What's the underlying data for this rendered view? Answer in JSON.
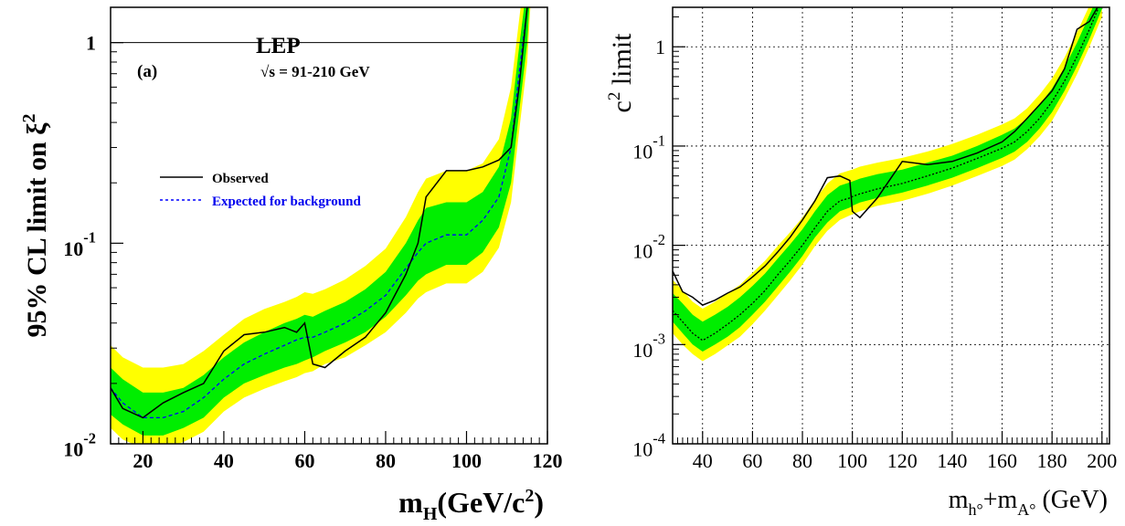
{
  "chart_data": [
    {
      "type": "line",
      "panel_label": "(a)",
      "header": "LEP",
      "energy_label": "√s = 91-210 GeV",
      "ylabel": "95% CL limit on ξ",
      "ylabel_sup": "2",
      "xlabel": "m",
      "xlabel_sub": "H",
      "xlabel_unit": "(GeV/c",
      "xlabel_unit_sup": "2",
      "xlabel_close": ")",
      "y_scale": "log",
      "xlim": [
        12,
        120
      ],
      "ylim": [
        0.01,
        1.5
      ],
      "x_ticks": [
        "20",
        "40",
        "60",
        "80",
        "100",
        "120"
      ],
      "x_tick_values": [
        20,
        40,
        60,
        80,
        100,
        120
      ],
      "y_ticks": [
        {
          "value": 1,
          "base": "1",
          "exp": ""
        },
        {
          "value": 0.1,
          "base": "10",
          "exp": "-1"
        },
        {
          "value": 0.01,
          "base": "10",
          "exp": "-2"
        }
      ],
      "reference_line": 1,
      "legend": {
        "observed": "Observed",
        "expected": "Expected for background",
        "placement": "upper-left"
      },
      "colors": {
        "band2": "#ffff00",
        "band1": "#00ee00",
        "observed": "#000000",
        "expected": "#0000ff"
      },
      "x": [
        12,
        15,
        20,
        25,
        30,
        35,
        40,
        45,
        50,
        55,
        58,
        60,
        62,
        65,
        70,
        75,
        80,
        85,
        88,
        90,
        95,
        100,
        104,
        108,
        111,
        113,
        115,
        116,
        117
      ],
      "expected": [
        0.019,
        0.016,
        0.0135,
        0.0135,
        0.0145,
        0.017,
        0.021,
        0.025,
        0.028,
        0.031,
        0.033,
        0.034,
        0.034,
        0.036,
        0.04,
        0.046,
        0.055,
        0.075,
        0.09,
        0.1,
        0.11,
        0.11,
        0.13,
        0.17,
        0.3,
        0.7,
        1.5,
        3,
        5
      ],
      "observed": [
        0.019,
        0.015,
        0.0135,
        0.016,
        0.018,
        0.02,
        0.029,
        0.035,
        0.036,
        0.038,
        0.036,
        0.04,
        0.025,
        0.024,
        0.029,
        0.034,
        0.045,
        0.07,
        0.1,
        0.17,
        0.23,
        0.23,
        0.24,
        0.26,
        0.3,
        0.6,
        1.5,
        3,
        5
      ],
      "band1_low": [
        0.014,
        0.0125,
        0.011,
        0.011,
        0.012,
        0.0135,
        0.017,
        0.02,
        0.022,
        0.024,
        0.025,
        0.026,
        0.027,
        0.029,
        0.032,
        0.036,
        0.043,
        0.055,
        0.065,
        0.07,
        0.078,
        0.078,
        0.09,
        0.12,
        0.2,
        0.45,
        1.0,
        2.2,
        4
      ],
      "band1_high": [
        0.024,
        0.021,
        0.018,
        0.018,
        0.019,
        0.022,
        0.027,
        0.032,
        0.036,
        0.04,
        0.042,
        0.044,
        0.043,
        0.046,
        0.051,
        0.059,
        0.072,
        0.1,
        0.13,
        0.15,
        0.16,
        0.16,
        0.18,
        0.24,
        0.42,
        0.95,
        2,
        4,
        6
      ],
      "band2_low": [
        0.012,
        0.0105,
        0.0095,
        0.0095,
        0.0102,
        0.0115,
        0.0145,
        0.017,
        0.0188,
        0.0205,
        0.0215,
        0.0225,
        0.023,
        0.025,
        0.027,
        0.031,
        0.036,
        0.045,
        0.053,
        0.057,
        0.063,
        0.063,
        0.072,
        0.095,
        0.16,
        0.36,
        0.8,
        1.8,
        3.5
      ],
      "band2_high": [
        0.031,
        0.027,
        0.024,
        0.024,
        0.025,
        0.029,
        0.035,
        0.042,
        0.047,
        0.051,
        0.054,
        0.057,
        0.056,
        0.059,
        0.066,
        0.077,
        0.094,
        0.135,
        0.18,
        0.21,
        0.23,
        0.23,
        0.25,
        0.33,
        0.6,
        1.3,
        2.8,
        5,
        8
      ]
    },
    {
      "type": "line",
      "ylabel": "c",
      "ylabel_sup": "2",
      "ylabel_rest": " limit",
      "xlabel": "m",
      "xlabel_sub1": "h°",
      "xlabel_mid": "+m",
      "xlabel_sub2": "A°",
      "xlabel_unit": " (GeV)",
      "y_scale": "log",
      "xlim": [
        28,
        203
      ],
      "ylim": [
        0.0001,
        2.5
      ],
      "grid": true,
      "x_ticks": [
        "40",
        "60",
        "80",
        "100",
        "120",
        "140",
        "160",
        "180",
        "200"
      ],
      "x_tick_values": [
        40,
        60,
        80,
        100,
        120,
        140,
        160,
        180,
        200
      ],
      "y_ticks": [
        {
          "value": 1,
          "base": "1",
          "exp": ""
        },
        {
          "value": 0.1,
          "base": "10",
          "exp": "-1"
        },
        {
          "value": 0.01,
          "base": "10",
          "exp": "-2"
        },
        {
          "value": 0.001,
          "base": "10",
          "exp": "-3"
        },
        {
          "value": 0.0001,
          "base": "10",
          "exp": "-4"
        }
      ],
      "colors": {
        "band2": "#ffff00",
        "band1": "#00ee00",
        "observed": "#000000",
        "expected": "#000000"
      },
      "x": [
        28,
        32,
        36,
        40,
        45,
        50,
        55,
        60,
        65,
        70,
        75,
        80,
        85,
        90,
        95,
        99,
        100,
        103,
        110,
        120,
        130,
        140,
        150,
        160,
        165,
        170,
        175,
        180,
        185,
        190,
        195,
        200
      ],
      "expected": [
        0.0022,
        0.0017,
        0.0013,
        0.0011,
        0.0013,
        0.0016,
        0.002,
        0.0026,
        0.0035,
        0.005,
        0.007,
        0.01,
        0.015,
        0.022,
        0.028,
        0.03,
        0.031,
        0.033,
        0.037,
        0.042,
        0.05,
        0.06,
        0.075,
        0.095,
        0.11,
        0.14,
        0.19,
        0.28,
        0.45,
        0.8,
        1.5,
        3
      ],
      "observed": [
        0.0055,
        0.0034,
        0.003,
        0.0025,
        0.0028,
        0.0033,
        0.0038,
        0.0048,
        0.0062,
        0.0085,
        0.012,
        0.018,
        0.028,
        0.048,
        0.05,
        0.045,
        0.022,
        0.019,
        0.03,
        0.07,
        0.065,
        0.07,
        0.085,
        0.11,
        0.14,
        0.19,
        0.26,
        0.36,
        0.6,
        1.5,
        1.8,
        3
      ],
      "band1_low": [
        0.0017,
        0.0013,
        0.001,
        0.00085,
        0.001,
        0.0012,
        0.0015,
        0.002,
        0.0027,
        0.0038,
        0.0054,
        0.0078,
        0.012,
        0.017,
        0.022,
        0.024,
        0.025,
        0.027,
        0.03,
        0.034,
        0.04,
        0.048,
        0.06,
        0.076,
        0.088,
        0.11,
        0.15,
        0.22,
        0.36,
        0.64,
        1.2,
        2.4
      ],
      "band1_high": [
        0.0033,
        0.0026,
        0.002,
        0.0017,
        0.002,
        0.0024,
        0.003,
        0.0039,
        0.0052,
        0.0073,
        0.0102,
        0.0145,
        0.022,
        0.032,
        0.04,
        0.043,
        0.044,
        0.047,
        0.052,
        0.058,
        0.068,
        0.08,
        0.1,
        0.13,
        0.15,
        0.19,
        0.26,
        0.38,
        0.62,
        1.1,
        2.1,
        4
      ],
      "band2_low": [
        0.0013,
        0.001,
        0.0008,
        0.00068,
        0.0008,
        0.00098,
        0.0012,
        0.0016,
        0.0022,
        0.0031,
        0.0044,
        0.0064,
        0.0098,
        0.014,
        0.018,
        0.02,
        0.0205,
        0.022,
        0.025,
        0.028,
        0.033,
        0.04,
        0.05,
        0.063,
        0.073,
        0.093,
        0.125,
        0.18,
        0.3,
        0.53,
        1.0,
        2.0
      ],
      "band2_high": [
        0.0045,
        0.0035,
        0.0027,
        0.0023,
        0.0027,
        0.0033,
        0.004,
        0.0053,
        0.007,
        0.0098,
        0.0135,
        0.019,
        0.029,
        0.042,
        0.053,
        0.057,
        0.058,
        0.062,
        0.068,
        0.076,
        0.088,
        0.105,
        0.13,
        0.165,
        0.19,
        0.24,
        0.33,
        0.48,
        0.78,
        1.4,
        2.6,
        5
      ]
    }
  ]
}
